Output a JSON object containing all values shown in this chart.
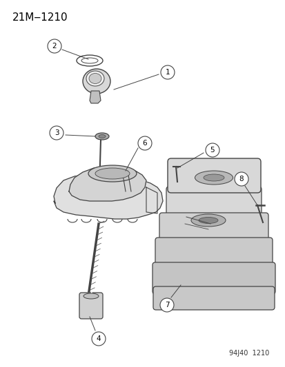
{
  "title": "21M‒1210",
  "footer": "94J40  1210",
  "bg_color": "#ffffff",
  "line_color": "#444444",
  "figsize": [
    4.14,
    5.33
  ],
  "dpi": 100
}
